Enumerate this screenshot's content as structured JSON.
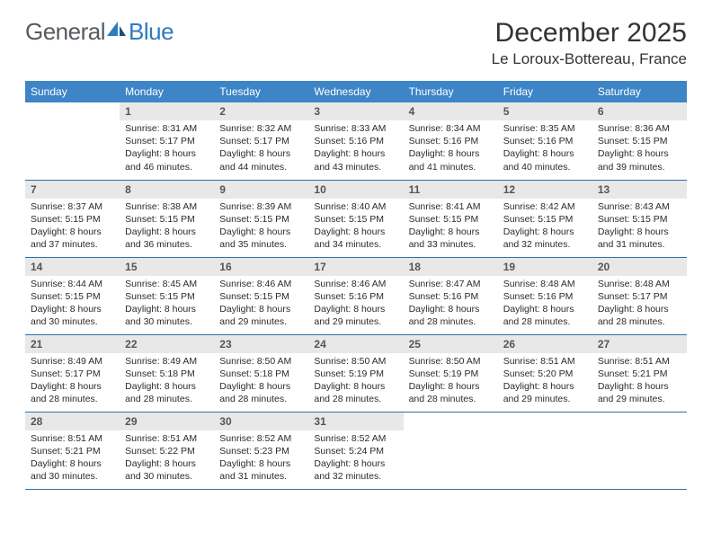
{
  "logo": {
    "text_a": "General",
    "text_b": "Blue"
  },
  "title": "December 2025",
  "location": "Le Loroux-Bottereau, France",
  "colors": {
    "header_bg": "#3d85c6",
    "header_text": "#ffffff",
    "row_border": "#2f6fa8",
    "daynum_bg": "#e8e8e8",
    "logo_gray": "#555b60",
    "logo_blue": "#2f7bbf"
  },
  "weekdays": [
    "Sunday",
    "Monday",
    "Tuesday",
    "Wednesday",
    "Thursday",
    "Friday",
    "Saturday"
  ],
  "weeks": [
    [
      null,
      {
        "n": "1",
        "sunrise": "8:31 AM",
        "sunset": "5:17 PM",
        "day": "8 hours and 46 minutes."
      },
      {
        "n": "2",
        "sunrise": "8:32 AM",
        "sunset": "5:17 PM",
        "day": "8 hours and 44 minutes."
      },
      {
        "n": "3",
        "sunrise": "8:33 AM",
        "sunset": "5:16 PM",
        "day": "8 hours and 43 minutes."
      },
      {
        "n": "4",
        "sunrise": "8:34 AM",
        "sunset": "5:16 PM",
        "day": "8 hours and 41 minutes."
      },
      {
        "n": "5",
        "sunrise": "8:35 AM",
        "sunset": "5:16 PM",
        "day": "8 hours and 40 minutes."
      },
      {
        "n": "6",
        "sunrise": "8:36 AM",
        "sunset": "5:15 PM",
        "day": "8 hours and 39 minutes."
      }
    ],
    [
      {
        "n": "7",
        "sunrise": "8:37 AM",
        "sunset": "5:15 PM",
        "day": "8 hours and 37 minutes."
      },
      {
        "n": "8",
        "sunrise": "8:38 AM",
        "sunset": "5:15 PM",
        "day": "8 hours and 36 minutes."
      },
      {
        "n": "9",
        "sunrise": "8:39 AM",
        "sunset": "5:15 PM",
        "day": "8 hours and 35 minutes."
      },
      {
        "n": "10",
        "sunrise": "8:40 AM",
        "sunset": "5:15 PM",
        "day": "8 hours and 34 minutes."
      },
      {
        "n": "11",
        "sunrise": "8:41 AM",
        "sunset": "5:15 PM",
        "day": "8 hours and 33 minutes."
      },
      {
        "n": "12",
        "sunrise": "8:42 AM",
        "sunset": "5:15 PM",
        "day": "8 hours and 32 minutes."
      },
      {
        "n": "13",
        "sunrise": "8:43 AM",
        "sunset": "5:15 PM",
        "day": "8 hours and 31 minutes."
      }
    ],
    [
      {
        "n": "14",
        "sunrise": "8:44 AM",
        "sunset": "5:15 PM",
        "day": "8 hours and 30 minutes."
      },
      {
        "n": "15",
        "sunrise": "8:45 AM",
        "sunset": "5:15 PM",
        "day": "8 hours and 30 minutes."
      },
      {
        "n": "16",
        "sunrise": "8:46 AM",
        "sunset": "5:15 PM",
        "day": "8 hours and 29 minutes."
      },
      {
        "n": "17",
        "sunrise": "8:46 AM",
        "sunset": "5:16 PM",
        "day": "8 hours and 29 minutes."
      },
      {
        "n": "18",
        "sunrise": "8:47 AM",
        "sunset": "5:16 PM",
        "day": "8 hours and 28 minutes."
      },
      {
        "n": "19",
        "sunrise": "8:48 AM",
        "sunset": "5:16 PM",
        "day": "8 hours and 28 minutes."
      },
      {
        "n": "20",
        "sunrise": "8:48 AM",
        "sunset": "5:17 PM",
        "day": "8 hours and 28 minutes."
      }
    ],
    [
      {
        "n": "21",
        "sunrise": "8:49 AM",
        "sunset": "5:17 PM",
        "day": "8 hours and 28 minutes."
      },
      {
        "n": "22",
        "sunrise": "8:49 AM",
        "sunset": "5:18 PM",
        "day": "8 hours and 28 minutes."
      },
      {
        "n": "23",
        "sunrise": "8:50 AM",
        "sunset": "5:18 PM",
        "day": "8 hours and 28 minutes."
      },
      {
        "n": "24",
        "sunrise": "8:50 AM",
        "sunset": "5:19 PM",
        "day": "8 hours and 28 minutes."
      },
      {
        "n": "25",
        "sunrise": "8:50 AM",
        "sunset": "5:19 PM",
        "day": "8 hours and 28 minutes."
      },
      {
        "n": "26",
        "sunrise": "8:51 AM",
        "sunset": "5:20 PM",
        "day": "8 hours and 29 minutes."
      },
      {
        "n": "27",
        "sunrise": "8:51 AM",
        "sunset": "5:21 PM",
        "day": "8 hours and 29 minutes."
      }
    ],
    [
      {
        "n": "28",
        "sunrise": "8:51 AM",
        "sunset": "5:21 PM",
        "day": "8 hours and 30 minutes."
      },
      {
        "n": "29",
        "sunrise": "8:51 AM",
        "sunset": "5:22 PM",
        "day": "8 hours and 30 minutes."
      },
      {
        "n": "30",
        "sunrise": "8:52 AM",
        "sunset": "5:23 PM",
        "day": "8 hours and 31 minutes."
      },
      {
        "n": "31",
        "sunrise": "8:52 AM",
        "sunset": "5:24 PM",
        "day": "8 hours and 32 minutes."
      },
      null,
      null,
      null
    ]
  ]
}
